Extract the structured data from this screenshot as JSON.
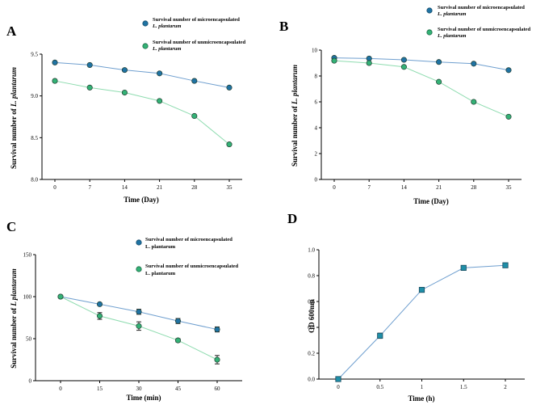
{
  "colors": {
    "micro_line": "#6f9fcf",
    "micro_marker": "#1f73a3",
    "unmicro_line": "#8fdcb0",
    "unmicro_marker": "#33b276",
    "d_marker": "#1f8fa8",
    "axis": "#000000"
  },
  "chart_data": [
    {
      "id": "A",
      "panel_label": "A",
      "type": "line",
      "xlabel": "Time (Day)",
      "ylabel_prefix": "Survival number of ",
      "ylabel_italic": "L. plantarum",
      "categories": [
        "0",
        "7",
        "14",
        "21",
        "28",
        "35"
      ],
      "ylim": [
        8.0,
        9.5
      ],
      "yticks": [
        "8.0",
        "8.5",
        "9.0",
        "9.5"
      ],
      "series": [
        {
          "name": "Survival number of microencapsulated",
          "name_line2": "L. plantarum",
          "values": [
            9.4,
            9.37,
            9.31,
            9.27,
            9.18,
            9.1
          ]
        },
        {
          "name": "Survival number of unmicroencapsulated",
          "name_line2": "L. plantarum",
          "values": [
            9.18,
            9.1,
            9.04,
            8.94,
            8.76,
            8.42
          ]
        }
      ]
    },
    {
      "id": "B",
      "panel_label": "B",
      "type": "line",
      "xlabel": "Time (Day)",
      "ylabel_prefix": "Survival number of ",
      "ylabel_italic": "L. plantarum",
      "categories": [
        "0",
        "7",
        "14",
        "21",
        "28",
        "35"
      ],
      "ylim": [
        0,
        10
      ],
      "yticks": [
        "0",
        "2",
        "4",
        "6",
        "8",
        "10"
      ],
      "series": [
        {
          "name": "Survival number of microencapsulated",
          "name_line2": "L. plantarum",
          "values": [
            9.4,
            9.35,
            9.25,
            9.08,
            8.95,
            8.45
          ]
        },
        {
          "name": "Survival number of unmicroencapsulated",
          "name_line2": "L. plantarum",
          "values": [
            9.18,
            9.0,
            8.7,
            7.55,
            6.0,
            4.85
          ]
        }
      ]
    },
    {
      "id": "C",
      "panel_label": "C",
      "type": "line",
      "xlabel": "Time (min)",
      "ylabel_prefix": "Survival number of ",
      "ylabel_italic": "L plantarum",
      "categories": [
        "0",
        "15",
        "30",
        "45",
        "60"
      ],
      "ylim": [
        0,
        150
      ],
      "yticks": [
        "0",
        "50",
        "100",
        "150"
      ],
      "series": [
        {
          "name": "Survival number of microencapsulated",
          "name_line2": "L. plantarum",
          "values": [
            100,
            91,
            82,
            71,
            61
          ],
          "errors": [
            0,
            1.5,
            3,
            3,
            3
          ]
        },
        {
          "name": "Survival number of unmicroencapsulated",
          "name_line2": "L. plantarum",
          "values": [
            100,
            77,
            65,
            48,
            25
          ],
          "errors": [
            0,
            4,
            5,
            2,
            5
          ]
        }
      ]
    },
    {
      "id": "D",
      "panel_label": "D",
      "type": "line",
      "xlabel": "Time (h)",
      "ylabel": "OD 600nm",
      "categories": [
        "0",
        "0.5",
        "1",
        "1.5",
        "2"
      ],
      "ylim": [
        0.0,
        1.0
      ],
      "yticks": [
        "0.0",
        "0.2",
        "0.4",
        "0.6",
        "0.8",
        "1.0"
      ],
      "series": [
        {
          "name": "OD 600nm",
          "values": [
            0.0,
            0.335,
            0.69,
            0.86,
            0.88
          ],
          "errors": [
            0,
            0.02,
            0.01,
            0.015,
            0.01
          ]
        }
      ]
    }
  ]
}
